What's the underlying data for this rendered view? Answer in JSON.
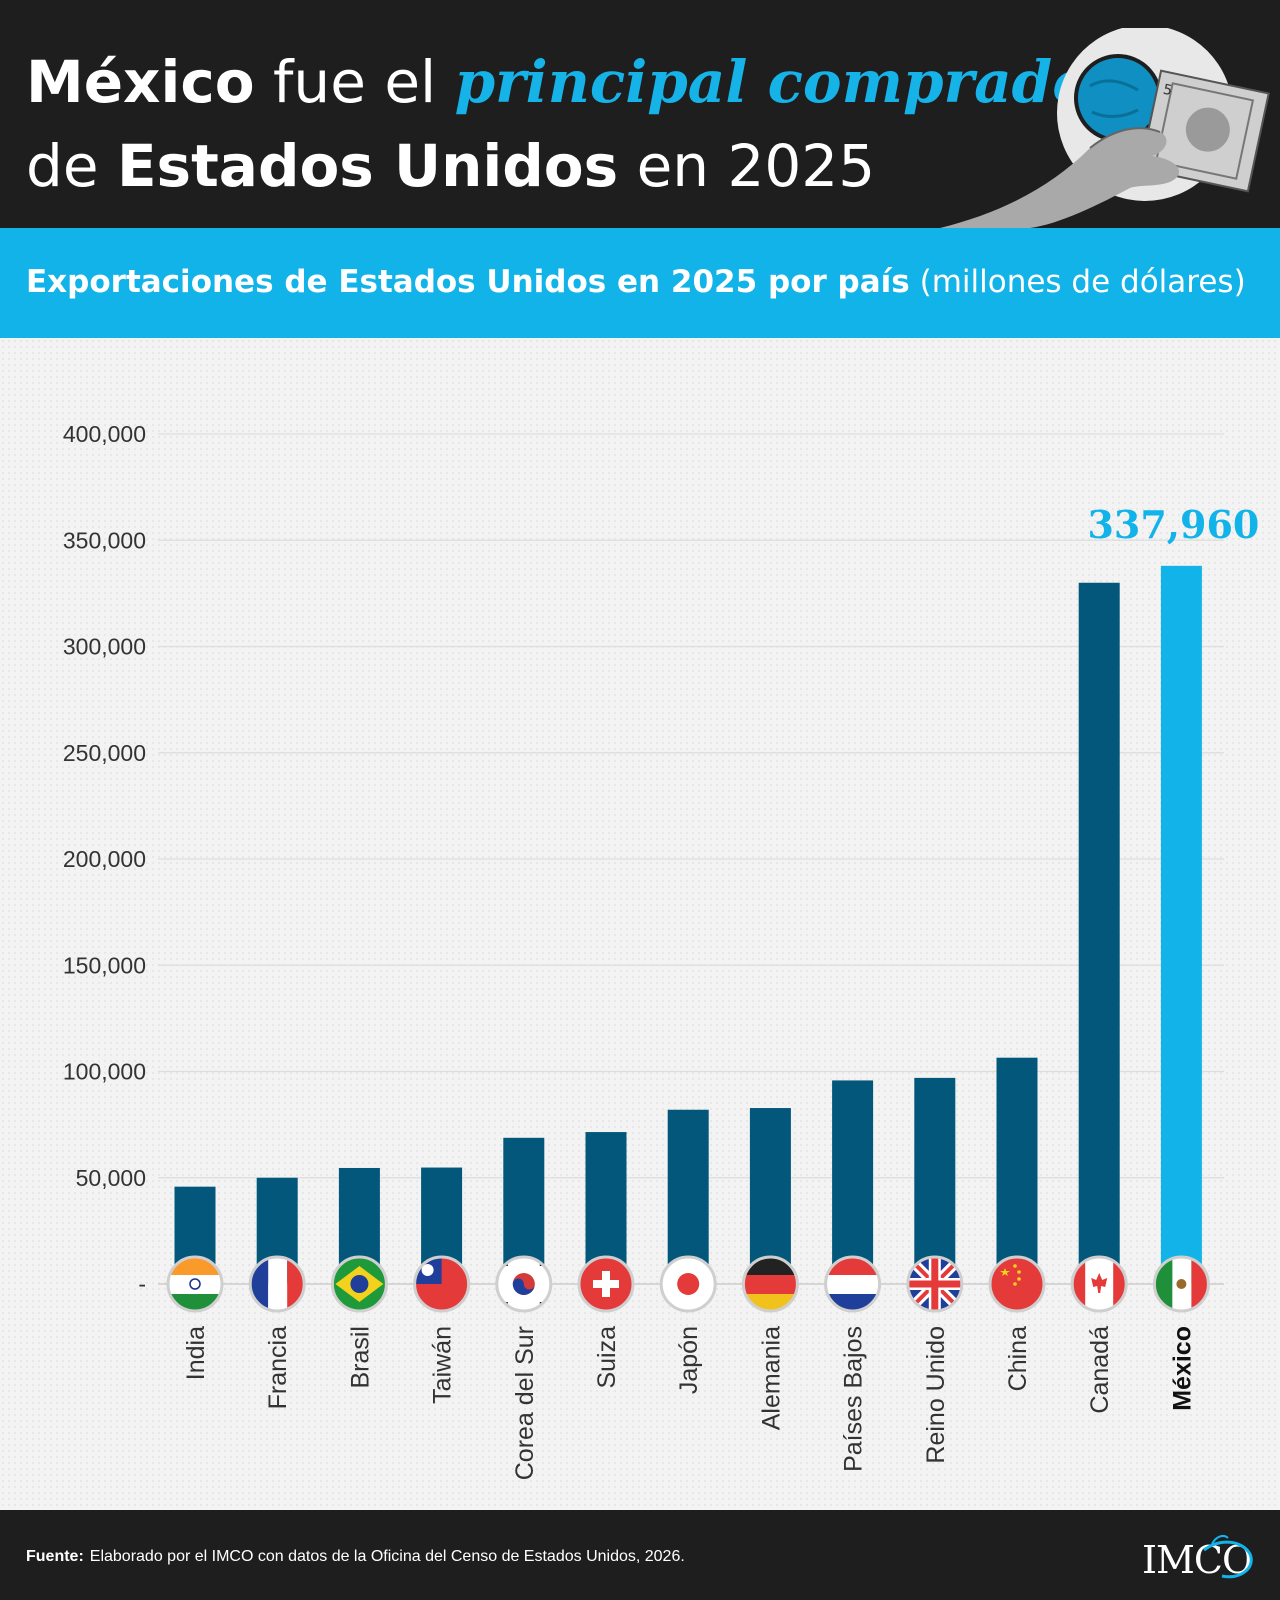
{
  "header": {
    "title_line1": [
      "México",
      " fue el ",
      "principal comprador"
    ],
    "title_line2": [
      "de ",
      "Estados Unidos",
      " en 2025"
    ]
  },
  "subtitle": {
    "bold": "Exportaciones de Estados Unidos en 2025 por país",
    "normal": "(millones de dólares)"
  },
  "chart_data": {
    "type": "bar",
    "title": "Exportaciones de Estados Unidos en 2025 por país (millones de dólares)",
    "categories": [
      "India",
      "Francia",
      "Brasil",
      "Taiwán",
      "Corea del Sur",
      "Suiza",
      "Japón",
      "Alemania",
      "Países Bajos",
      "Reino Unido",
      "China",
      "Canadá",
      "México"
    ],
    "values": [
      45800,
      50000,
      54600,
      54800,
      68800,
      71500,
      82000,
      82800,
      95800,
      97000,
      106500,
      330000,
      337960
    ],
    "highlight_index": 12,
    "highlight_label": "337,960",
    "ylim": [
      0,
      400000
    ],
    "yticks": [
      0,
      50000,
      100000,
      150000,
      200000,
      250000,
      300000,
      350000,
      400000
    ],
    "ytick_labels": [
      "-",
      "50,000",
      "100,000",
      "150,000",
      "200,000",
      "250,000",
      "300,000",
      "350,000",
      "400,000"
    ],
    "colors": {
      "bar": "#02577a",
      "highlight": "#12b3e8",
      "grid": "#dddddd",
      "axis_text": "#333333"
    },
    "flags": [
      "india",
      "france",
      "brazil",
      "taiwan",
      "south-korea",
      "switzerland",
      "japan",
      "germany",
      "netherlands",
      "uk",
      "china",
      "canada",
      "mexico"
    ]
  },
  "footer": {
    "source_label": "Fuente:",
    "source_text": "Elaborado por el IMCO con datos de la Oficina del Censo de Estados Unidos, 2026.",
    "logo": "IMCO"
  }
}
